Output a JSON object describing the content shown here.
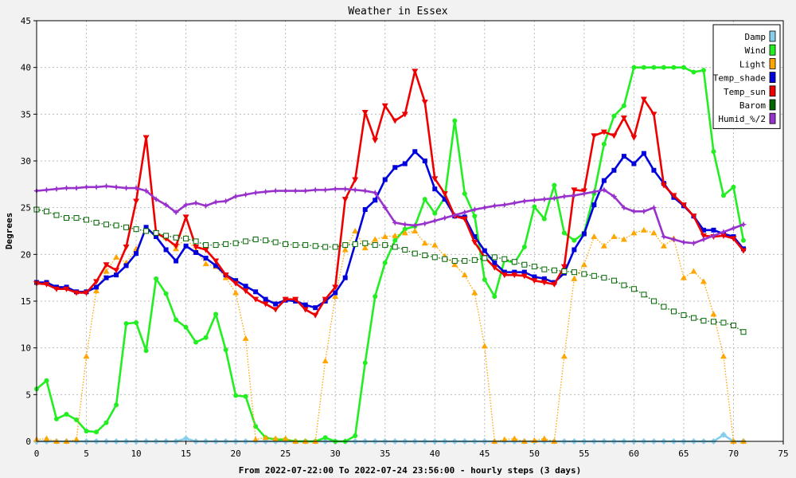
{
  "chart_data": {
    "type": "line",
    "title": "Weather in Essex",
    "xlabel": "From 2022-07-22:00 To 2022-07-24 23:56:00 - hourly steps (3 days)",
    "ylabel": "Degrees",
    "xlim": [
      0,
      75
    ],
    "ylim": [
      0,
      45
    ],
    "x_ticks": [
      0,
      5,
      10,
      15,
      20,
      25,
      30,
      35,
      40,
      45,
      50,
      55,
      60,
      65,
      70,
      75
    ],
    "y_ticks": [
      0,
      5,
      10,
      15,
      20,
      25,
      30,
      35,
      40,
      45
    ],
    "grid": true,
    "legend_position": "top-right",
    "x": [
      0,
      1,
      2,
      3,
      4,
      5,
      6,
      7,
      8,
      9,
      10,
      11,
      12,
      13,
      14,
      15,
      16,
      17,
      18,
      19,
      20,
      21,
      22,
      23,
      24,
      25,
      26,
      27,
      28,
      29,
      30,
      31,
      32,
      33,
      34,
      35,
      36,
      37,
      38,
      39,
      40,
      41,
      42,
      43,
      44,
      45,
      46,
      47,
      48,
      49,
      50,
      51,
      52,
      53,
      54,
      55,
      56,
      57,
      58,
      59,
      60,
      61,
      62,
      63,
      64,
      65,
      66,
      67,
      68,
      69,
      70,
      71
    ],
    "series": [
      {
        "name": "Damp",
        "color": "#87ceeb",
        "line": "solid",
        "marker": "diamond",
        "values": [
          0,
          0,
          0,
          0,
          0,
          0,
          0,
          0,
          0,
          0,
          0,
          0,
          0,
          0,
          0,
          0.3,
          0,
          0,
          0,
          0,
          0,
          0,
          0,
          0,
          0,
          0,
          0,
          0,
          0,
          0,
          0,
          0,
          0,
          0,
          0,
          0,
          0,
          0,
          0,
          0,
          0,
          0,
          0,
          0,
          0,
          0,
          0,
          0,
          0,
          0,
          0,
          0,
          0,
          0,
          0,
          0,
          0,
          0,
          0,
          0,
          0,
          0,
          0,
          0,
          0,
          0,
          0,
          0,
          0,
          0.7,
          0,
          0
        ]
      },
      {
        "name": "Wind",
        "color": "#22ee22",
        "line": "solid",
        "marker": "circle",
        "values": [
          5.6,
          6.5,
          2.4,
          2.9,
          2.3,
          1.1,
          1.0,
          2.0,
          3.9,
          12.6,
          12.7,
          9.7,
          17.4,
          15.8,
          13.0,
          12.2,
          10.6,
          11.1,
          13.6,
          9.8,
          4.9,
          4.8,
          1.6,
          0.4,
          0.2,
          0.2,
          0,
          0,
          0,
          0.4,
          0,
          0,
          0.6,
          8.4,
          15.5,
          19.1,
          21.5,
          22.7,
          23.0,
          25.9,
          24.4,
          26.1,
          34.3,
          26.5,
          24.1,
          17.3,
          15.5,
          19.4,
          19.1,
          20.8,
          25.1,
          23.8,
          27.4,
          22.3,
          21.5,
          22.3,
          26.5,
          31.8,
          34.8,
          35.9,
          40.0,
          40.0,
          40.0,
          40.0,
          40.0,
          40.0,
          39.5,
          39.7,
          31.0,
          26.3,
          27.2,
          21.5
        ]
      },
      {
        "name": "Light",
        "color": "#ffa500",
        "line": "dotted",
        "marker": "triangle",
        "values": [
          0.2,
          0.3,
          0,
          0,
          0.2,
          9.1,
          16.1,
          18.2,
          19.7,
          19.1,
          20.6,
          22.6,
          22.3,
          21.8,
          20.6,
          21.8,
          20.4,
          19.0,
          18.7,
          17.5,
          15.9,
          11.0,
          0.2,
          0.4,
          0.3,
          0.3,
          0,
          0,
          0,
          8.6,
          15.5,
          20.5,
          22.5,
          20.7,
          21.6,
          21.9,
          22.0,
          22.3,
          22.5,
          21.2,
          21.0,
          19.8,
          18.9,
          17.8,
          15.9,
          10.2,
          0,
          0.2,
          0.3,
          0,
          0.1,
          0.3,
          0,
          9.1,
          17.4,
          18.9,
          21.9,
          20.9,
          21.9,
          21.6,
          22.3,
          22.6,
          22.3,
          20.9,
          21.7,
          17.5,
          18.2,
          17.1,
          13.6,
          9.1,
          0,
          0
        ]
      },
      {
        "name": "Temp_shade",
        "color": "#0000dd",
        "line": "solid",
        "marker": "square",
        "values": [
          17.0,
          17.0,
          16.5,
          16.5,
          16.0,
          16.0,
          16.5,
          17.5,
          17.8,
          18.8,
          20.1,
          22.9,
          21.9,
          20.5,
          19.3,
          20.9,
          20.2,
          19.6,
          18.8,
          17.8,
          17.2,
          16.6,
          16.0,
          15.2,
          14.7,
          15.1,
          15.0,
          14.6,
          14.3,
          15.0,
          15.9,
          17.5,
          21.1,
          24.8,
          25.8,
          28.0,
          29.3,
          29.7,
          31.0,
          30.0,
          27.0,
          25.9,
          24.1,
          24.0,
          21.9,
          20.4,
          19.1,
          18.1,
          18.1,
          18.1,
          17.6,
          17.4,
          17.0,
          18.0,
          20.5,
          22.2,
          25.3,
          27.9,
          29.0,
          30.5,
          29.7,
          30.8,
          29.0,
          27.6,
          26.1,
          25.2,
          24.1,
          22.6,
          22.6,
          22.2,
          21.9,
          20.6
        ]
      },
      {
        "name": "Temp_sun",
        "color": "#ee0000",
        "line": "solid",
        "marker": "triangle-down",
        "values": [
          16.9,
          16.8,
          16.3,
          16.3,
          15.9,
          15.9,
          17.1,
          18.9,
          18.3,
          20.8,
          25.7,
          32.5,
          22.3,
          21.7,
          20.9,
          24.0,
          20.8,
          20.5,
          19.3,
          17.8,
          16.9,
          16.1,
          15.2,
          14.7,
          14.1,
          15.2,
          15.2,
          14.1,
          13.5,
          15.2,
          16.5,
          25.9,
          28.0,
          35.2,
          32.2,
          35.9,
          34.3,
          35.0,
          39.6,
          36.3,
          28.1,
          26.5,
          24.1,
          23.8,
          21.3,
          19.7,
          18.6,
          17.8,
          17.8,
          17.7,
          17.2,
          17.0,
          16.8,
          18.7,
          26.9,
          26.8,
          32.7,
          33.1,
          32.7,
          34.6,
          32.5,
          36.6,
          35.0,
          27.4,
          26.3,
          25.3,
          24.1,
          22.0,
          21.9,
          22.0,
          21.7,
          20.4
        ]
      },
      {
        "name": "Barom",
        "color": "#006600",
        "line": "dotted",
        "marker": "open-square",
        "values": [
          24.8,
          24.6,
          24.2,
          23.9,
          23.9,
          23.7,
          23.4,
          23.2,
          23.1,
          22.9,
          22.7,
          22.5,
          22.3,
          22.0,
          21.8,
          21.7,
          21.4,
          21.0,
          21.0,
          21.1,
          21.2,
          21.4,
          21.6,
          21.5,
          21.3,
          21.1,
          21.0,
          21.0,
          20.9,
          20.8,
          20.8,
          21.0,
          21.1,
          21.2,
          21.0,
          21.0,
          20.8,
          20.5,
          20.1,
          19.9,
          19.7,
          19.5,
          19.3,
          19.3,
          19.4,
          19.6,
          19.7,
          19.5,
          19.2,
          18.9,
          18.7,
          18.4,
          18.3,
          18.2,
          18.1,
          17.9,
          17.7,
          17.5,
          17.2,
          16.7,
          16.3,
          15.7,
          15.0,
          14.4,
          13.9,
          13.5,
          13.2,
          12.9,
          12.8,
          12.7,
          12.4,
          11.7
        ]
      },
      {
        "name": "Humid_%/2",
        "color": "#9932cc",
        "line": "solid",
        "marker": "star",
        "values": [
          26.8,
          26.9,
          27.0,
          27.1,
          27.1,
          27.2,
          27.2,
          27.3,
          27.2,
          27.1,
          27.1,
          26.8,
          25.9,
          25.3,
          24.5,
          25.3,
          25.5,
          25.2,
          25.6,
          25.7,
          26.2,
          26.4,
          26.6,
          26.7,
          26.8,
          26.8,
          26.8,
          26.8,
          26.9,
          26.9,
          27.0,
          27.0,
          26.9,
          26.8,
          26.6,
          25.0,
          23.4,
          23.2,
          23.1,
          23.3,
          23.6,
          23.9,
          24.2,
          24.5,
          24.8,
          25.0,
          25.2,
          25.3,
          25.5,
          25.7,
          25.8,
          25.9,
          26.0,
          26.2,
          26.3,
          26.5,
          26.7,
          26.9,
          26.2,
          25.0,
          24.6,
          24.6,
          25.0,
          21.9,
          21.6,
          21.3,
          21.2,
          21.6,
          22.0,
          22.4,
          22.8,
          23.2
        ]
      }
    ]
  }
}
